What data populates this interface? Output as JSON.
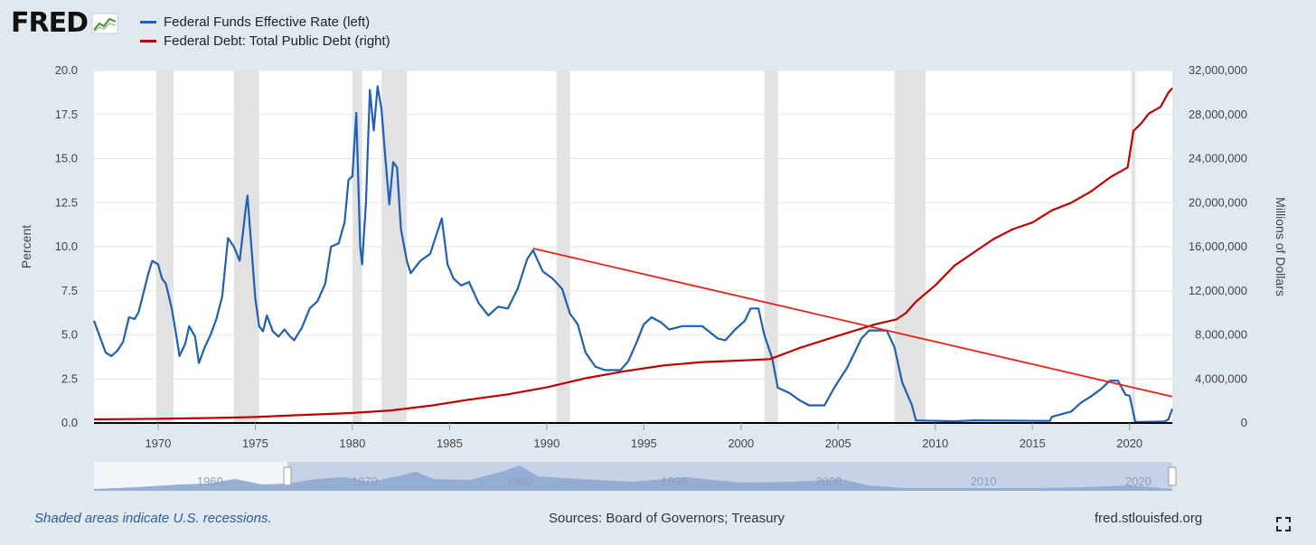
{
  "header": {
    "logo_text": "FRED",
    "legend": [
      {
        "label": "Federal Funds Effective Rate (left)",
        "color": "#1f5fb4"
      },
      {
        "label": "Federal Debt: Total Public Debt (right)",
        "color": "#c00000"
      }
    ]
  },
  "footer": {
    "note": "Shaded areas indicate U.S. recessions.",
    "sources": "Sources: Board of Governors; Treasury",
    "site": "fred.stlouisfed.org"
  },
  "icons": {
    "expand": "expand-icon",
    "logo": "chart-line-icon"
  },
  "chart_data": {
    "type": "line",
    "x_range": [
      1966.7,
      2022.2
    ],
    "x_ticks": [
      1970,
      1975,
      1980,
      1985,
      1990,
      1995,
      2000,
      2005,
      2010,
      2015,
      2020
    ],
    "left_axis": {
      "label": "Percent",
      "range": [
        0,
        20
      ],
      "ticks": [
        "0.0",
        "2.5",
        "5.0",
        "7.5",
        "10.0",
        "12.5",
        "15.0",
        "17.5",
        "20.0"
      ]
    },
    "right_axis": {
      "label": "Millions of Dollars",
      "range": [
        0,
        32000000
      ],
      "ticks": [
        "0",
        "4,000,000",
        "8,000,000",
        "12,000,000",
        "16,000,000",
        "20,000,000",
        "24,000,000",
        "28,000,000",
        "32,000,000"
      ]
    },
    "recessions": [
      [
        1969.9,
        1970.8
      ],
      [
        1973.9,
        1975.2
      ],
      [
        1980.0,
        1980.5
      ],
      [
        1981.5,
        1982.8
      ],
      [
        1990.5,
        1991.2
      ],
      [
        2001.2,
        2001.9
      ],
      [
        2007.9,
        2009.5
      ],
      [
        2020.1,
        2020.3
      ]
    ],
    "series": [
      {
        "name": "Federal Funds Effective Rate (left)",
        "axis": "left",
        "color": "#1f5fb4",
        "points": [
          [
            1966.7,
            5.8
          ],
          [
            1967.0,
            4.9
          ],
          [
            1967.3,
            4.0
          ],
          [
            1967.6,
            3.8
          ],
          [
            1967.9,
            4.1
          ],
          [
            1968.2,
            4.6
          ],
          [
            1968.5,
            6.0
          ],
          [
            1968.8,
            5.9
          ],
          [
            1969.0,
            6.3
          ],
          [
            1969.5,
            8.5
          ],
          [
            1969.7,
            9.2
          ],
          [
            1970.0,
            9.0
          ],
          [
            1970.2,
            8.2
          ],
          [
            1970.4,
            7.9
          ],
          [
            1970.7,
            6.5
          ],
          [
            1970.9,
            5.2
          ],
          [
            1971.1,
            3.8
          ],
          [
            1971.4,
            4.5
          ],
          [
            1971.6,
            5.5
          ],
          [
            1971.9,
            4.9
          ],
          [
            1972.1,
            3.4
          ],
          [
            1972.4,
            4.3
          ],
          [
            1972.7,
            5.0
          ],
          [
            1973.0,
            5.9
          ],
          [
            1973.3,
            7.2
          ],
          [
            1973.6,
            10.5
          ],
          [
            1973.9,
            10.0
          ],
          [
            1974.2,
            9.2
          ],
          [
            1974.5,
            12.1
          ],
          [
            1974.6,
            12.9
          ],
          [
            1974.8,
            10.0
          ],
          [
            1975.0,
            7.1
          ],
          [
            1975.2,
            5.5
          ],
          [
            1975.4,
            5.2
          ],
          [
            1975.6,
            6.1
          ],
          [
            1975.9,
            5.2
          ],
          [
            1976.2,
            4.9
          ],
          [
            1976.5,
            5.3
          ],
          [
            1976.8,
            4.9
          ],
          [
            1977.0,
            4.7
          ],
          [
            1977.4,
            5.4
          ],
          [
            1977.8,
            6.5
          ],
          [
            1978.2,
            6.9
          ],
          [
            1978.6,
            7.9
          ],
          [
            1978.9,
            10.0
          ],
          [
            1979.3,
            10.2
          ],
          [
            1979.6,
            11.4
          ],
          [
            1979.8,
            13.8
          ],
          [
            1980.0,
            14.0
          ],
          [
            1980.2,
            17.6
          ],
          [
            1980.4,
            10.0
          ],
          [
            1980.5,
            9.0
          ],
          [
            1980.7,
            12.5
          ],
          [
            1980.9,
            18.9
          ],
          [
            1981.1,
            16.6
          ],
          [
            1981.3,
            19.1
          ],
          [
            1981.5,
            17.8
          ],
          [
            1981.7,
            15.0
          ],
          [
            1981.9,
            12.4
          ],
          [
            1982.1,
            14.8
          ],
          [
            1982.3,
            14.5
          ],
          [
            1982.5,
            11.0
          ],
          [
            1982.8,
            9.2
          ],
          [
            1983.0,
            8.5
          ],
          [
            1983.5,
            9.2
          ],
          [
            1984.0,
            9.6
          ],
          [
            1984.3,
            10.6
          ],
          [
            1984.6,
            11.6
          ],
          [
            1984.9,
            9.0
          ],
          [
            1985.2,
            8.2
          ],
          [
            1985.6,
            7.8
          ],
          [
            1986.0,
            8.0
          ],
          [
            1986.5,
            6.8
          ],
          [
            1987.0,
            6.1
          ],
          [
            1987.5,
            6.6
          ],
          [
            1988.0,
            6.5
          ],
          [
            1988.5,
            7.6
          ],
          [
            1989.0,
            9.3
          ],
          [
            1989.3,
            9.8
          ],
          [
            1989.8,
            8.6
          ],
          [
            1990.3,
            8.2
          ],
          [
            1990.8,
            7.6
          ],
          [
            1991.2,
            6.2
          ],
          [
            1991.6,
            5.6
          ],
          [
            1992.0,
            4.0
          ],
          [
            1992.5,
            3.2
          ],
          [
            1993.0,
            3.0
          ],
          [
            1993.8,
            3.0
          ],
          [
            1994.2,
            3.5
          ],
          [
            1994.6,
            4.5
          ],
          [
            1995.0,
            5.6
          ],
          [
            1995.4,
            6.0
          ],
          [
            1995.9,
            5.7
          ],
          [
            1996.3,
            5.3
          ],
          [
            1997.0,
            5.5
          ],
          [
            1998.0,
            5.5
          ],
          [
            1998.8,
            4.8
          ],
          [
            1999.2,
            4.7
          ],
          [
            1999.7,
            5.3
          ],
          [
            2000.2,
            5.8
          ],
          [
            2000.5,
            6.5
          ],
          [
            2000.9,
            6.5
          ],
          [
            2001.2,
            5.0
          ],
          [
            2001.6,
            3.7
          ],
          [
            2001.9,
            2.0
          ],
          [
            2002.5,
            1.7
          ],
          [
            2003.0,
            1.3
          ],
          [
            2003.5,
            1.0
          ],
          [
            2004.3,
            1.0
          ],
          [
            2004.8,
            2.0
          ],
          [
            2005.5,
            3.2
          ],
          [
            2006.2,
            4.8
          ],
          [
            2006.6,
            5.25
          ],
          [
            2007.5,
            5.25
          ],
          [
            2007.9,
            4.3
          ],
          [
            2008.3,
            2.3
          ],
          [
            2008.8,
            1.0
          ],
          [
            2009.0,
            0.15
          ],
          [
            2011.0,
            0.1
          ],
          [
            2012.0,
            0.15
          ],
          [
            2015.9,
            0.12
          ],
          [
            2016.0,
            0.35
          ],
          [
            2017.0,
            0.65
          ],
          [
            2017.5,
            1.15
          ],
          [
            2018.0,
            1.5
          ],
          [
            2018.5,
            1.9
          ],
          [
            2019.0,
            2.4
          ],
          [
            2019.4,
            2.4
          ],
          [
            2019.8,
            1.6
          ],
          [
            2020.0,
            1.55
          ],
          [
            2020.3,
            0.05
          ],
          [
            2021.8,
            0.08
          ],
          [
            2022.0,
            0.2
          ],
          [
            2022.2,
            0.8
          ]
        ]
      },
      {
        "name": "Federal Debt: Total Public Debt (right)",
        "axis": "right",
        "color": "#c00000",
        "points": [
          [
            1966.7,
            330000
          ],
          [
            1970.0,
            380000
          ],
          [
            1973.0,
            460000
          ],
          [
            1975.0,
            540000
          ],
          [
            1977.0,
            700000
          ],
          [
            1980.0,
            910000
          ],
          [
            1982.0,
            1140000
          ],
          [
            1984.0,
            1570000
          ],
          [
            1986.0,
            2120000
          ],
          [
            1988.0,
            2600000
          ],
          [
            1990.0,
            3230000
          ],
          [
            1992.0,
            4060000
          ],
          [
            1994.0,
            4690000
          ],
          [
            1996.0,
            5220000
          ],
          [
            1998.0,
            5530000
          ],
          [
            2000.0,
            5670000
          ],
          [
            2001.5,
            5800000
          ],
          [
            2003.0,
            6800000
          ],
          [
            2005.0,
            7930000
          ],
          [
            2007.0,
            9000000
          ],
          [
            2008.0,
            9400000
          ],
          [
            2008.5,
            10000000
          ],
          [
            2009.0,
            11000000
          ],
          [
            2010.0,
            12500000
          ],
          [
            2011.0,
            14300000
          ],
          [
            2012.0,
            15500000
          ],
          [
            2013.0,
            16700000
          ],
          [
            2014.0,
            17600000
          ],
          [
            2015.0,
            18200000
          ],
          [
            2016.0,
            19300000
          ],
          [
            2017.0,
            20000000
          ],
          [
            2018.0,
            21000000
          ],
          [
            2019.0,
            22300000
          ],
          [
            2019.9,
            23200000
          ],
          [
            2020.2,
            26500000
          ],
          [
            2020.6,
            27200000
          ],
          [
            2021.0,
            28100000
          ],
          [
            2021.6,
            28700000
          ],
          [
            2022.0,
            30000000
          ],
          [
            2022.2,
            30400000
          ]
        ]
      },
      {
        "name": "",
        "axis": "left",
        "color": "#e8231a",
        "points": [
          [
            1989.3,
            9.9
          ],
          [
            2022.2,
            1.5
          ]
        ]
      }
    ]
  }
}
